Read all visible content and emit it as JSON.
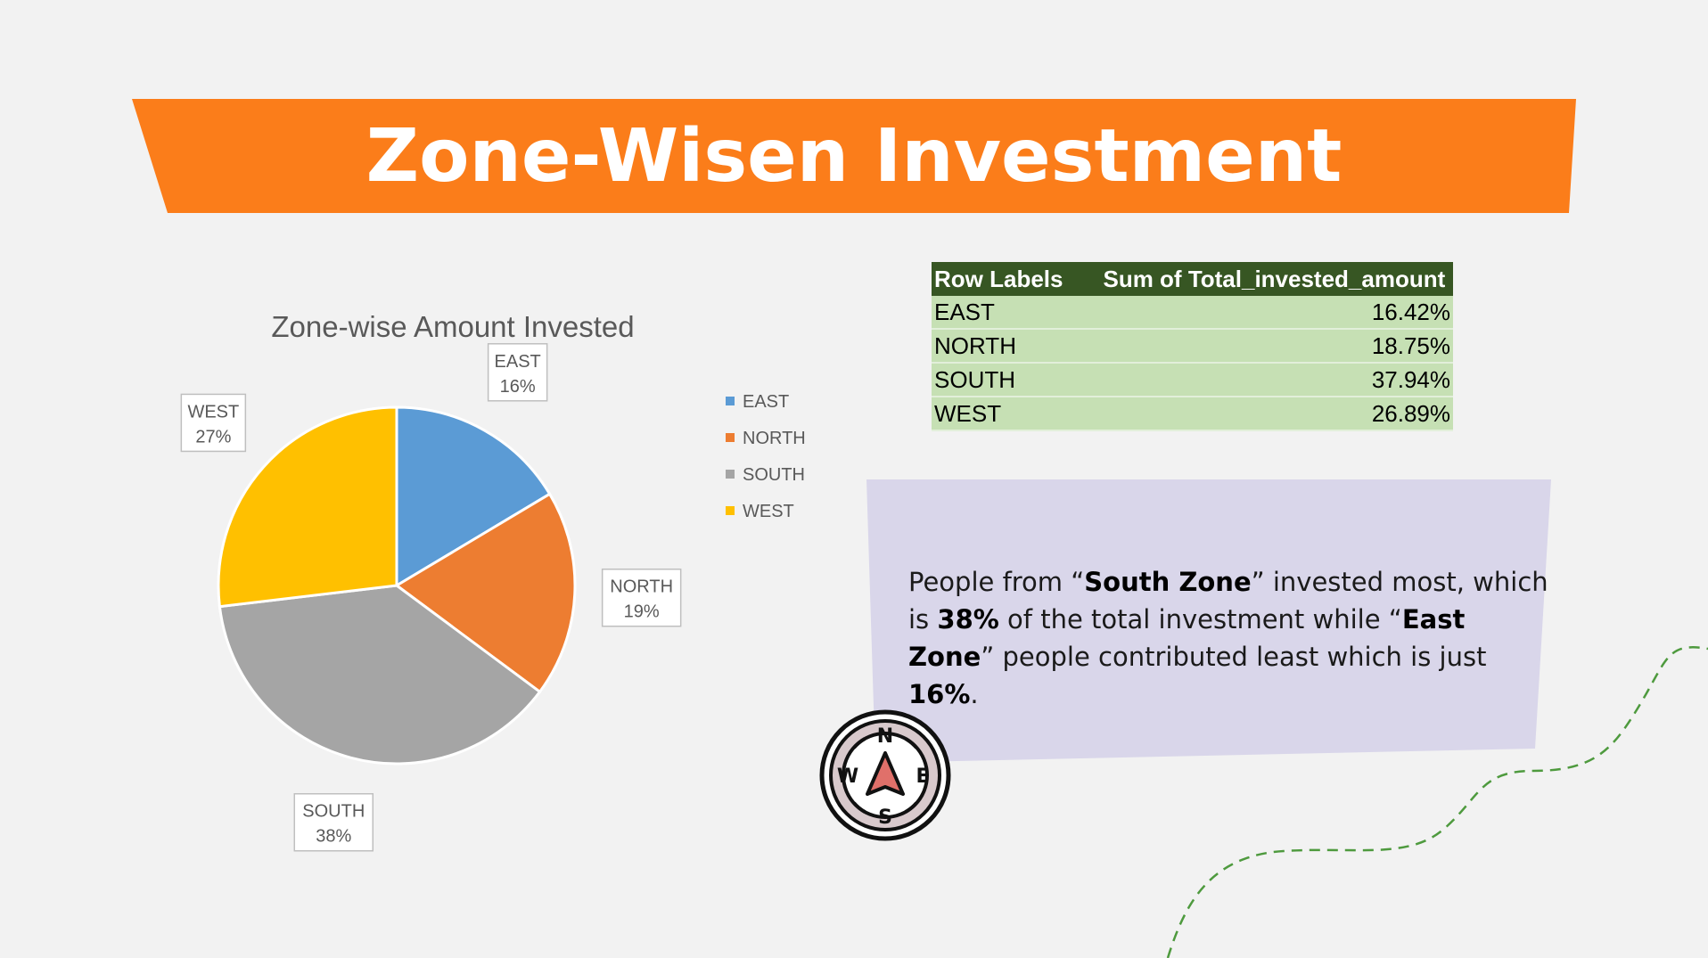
{
  "slide": {
    "title": "Zone-Wisen Investment",
    "accent_color": "#fb7d1a",
    "panel_color": "#d9d6ea"
  },
  "chart_data": {
    "type": "pie",
    "title": "Zone-wise Amount Invested",
    "categories": [
      "EAST",
      "NORTH",
      "SOUTH",
      "WEST"
    ],
    "values": [
      16.42,
      18.75,
      37.94,
      26.89
    ],
    "data_labels": [
      "16%",
      "19%",
      "38%",
      "27%"
    ],
    "colors": [
      "#5b9bd5",
      "#ed7d31",
      "#a5a5a5",
      "#ffc000"
    ],
    "legend_position": "right"
  },
  "pivot_table": {
    "headers": [
      "Row Labels",
      "Sum of Total_invested_amount"
    ],
    "rows": [
      {
        "label": "EAST",
        "value": "16.42%"
      },
      {
        "label": "NORTH",
        "value": "18.75%"
      },
      {
        "label": "SOUTH",
        "value": "37.94%"
      },
      {
        "label": "WEST",
        "value": "26.89%"
      }
    ]
  },
  "insight": {
    "t1": "People from “",
    "b1": "South Zone",
    "t2": "” invested most, which is ",
    "b2": "38%",
    "t3": " of the total investment while “",
    "b3": "East Zone",
    "t4": "” people contributed least which is just ",
    "b4": "16%",
    "t5": "."
  },
  "compass": {
    "n": "N",
    "e": "E",
    "s": "S",
    "w": "W",
    "icon": "compass-icon"
  }
}
